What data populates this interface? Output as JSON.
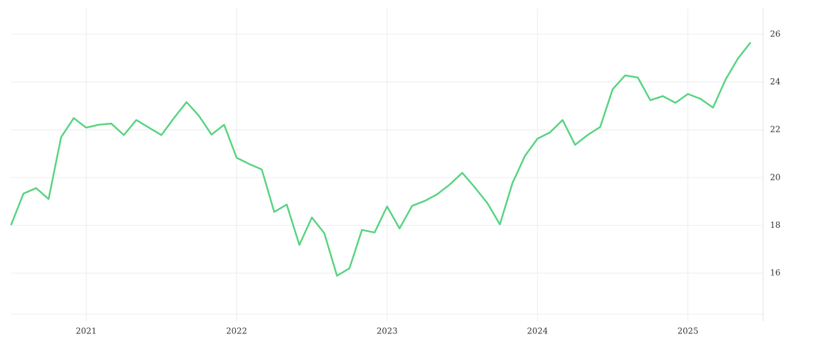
{
  "chart_data": {
    "type": "line",
    "x": [
      2020.5,
      2020.583,
      2020.667,
      2020.75,
      2020.833,
      2020.917,
      2021,
      2021.083,
      2021.167,
      2021.25,
      2021.333,
      2021.417,
      2021.5,
      2021.583,
      2021.667,
      2021.75,
      2021.833,
      2021.917,
      2022,
      2022.083,
      2022.167,
      2022.25,
      2022.333,
      2022.417,
      2022.5,
      2022.583,
      2022.667,
      2022.75,
      2022.833,
      2022.917,
      2023,
      2023.083,
      2023.167,
      2023.25,
      2023.333,
      2023.417,
      2023.5,
      2023.583,
      2023.667,
      2023.75,
      2023.833,
      2023.917,
      2024,
      2024.083,
      2024.167,
      2024.25,
      2024.333,
      2024.417,
      2024.5,
      2024.583,
      2024.667,
      2024.75,
      2024.833,
      2024.917,
      2025,
      2025.083,
      2025.167,
      2025.25,
      2025.333,
      2025.417
    ],
    "series": [
      {
        "color": "#55d47f",
        "values": [
          18.01,
          19.33,
          19.56,
          19.1,
          21.69,
          22.49,
          22.09,
          22.21,
          22.26,
          21.78,
          22.41,
          22.09,
          21.78,
          22.49,
          23.16,
          22.58,
          21.8,
          22.21,
          20.83,
          20.57,
          20.34,
          18.56,
          18.87,
          17.18,
          18.33,
          17.67,
          15.89,
          16.2,
          17.81,
          17.7,
          18.79,
          17.87,
          18.82,
          19.02,
          19.3,
          19.71,
          20.2,
          19.59,
          18.93,
          18.04,
          19.76,
          20.91,
          21.63,
          21.89,
          22.41,
          21.37,
          21.78,
          22.12,
          23.7,
          24.28,
          24.19,
          23.24,
          23.41,
          23.13,
          23.5,
          23.3,
          22.93,
          24.1,
          24.99,
          25.66
        ]
      }
    ],
    "xlim": [
      2020.5,
      2025.5
    ],
    "xticks": [
      2021,
      2022,
      2023,
      2024,
      2025
    ],
    "ylim": [
      14.28,
      27.09
    ],
    "yticks": [
      16,
      18,
      20,
      22,
      24,
      26
    ],
    "grid": true
  }
}
